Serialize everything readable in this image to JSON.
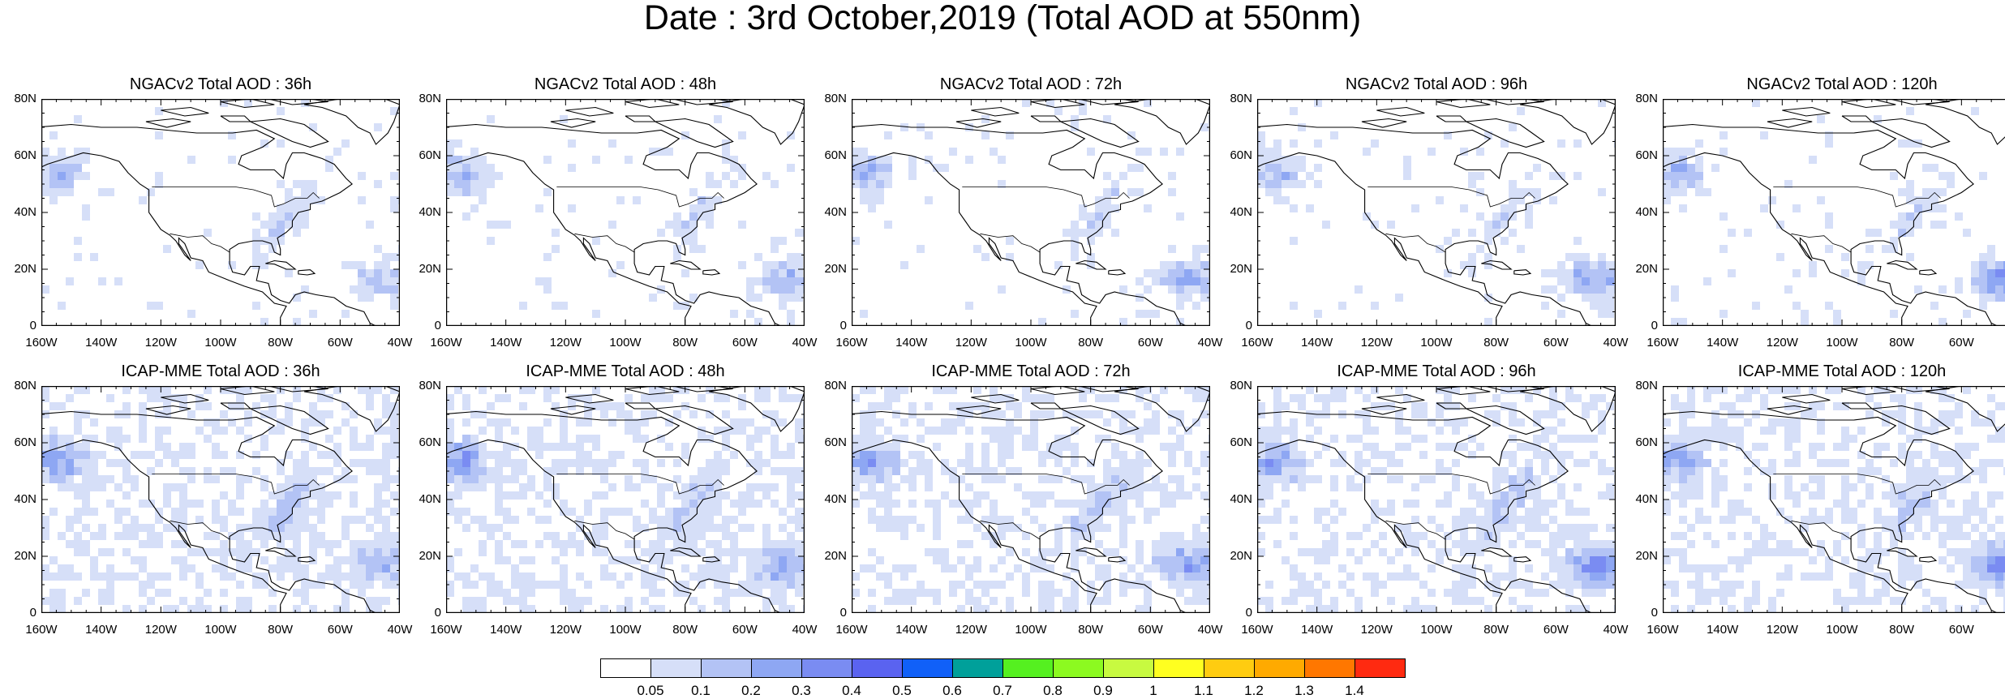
{
  "title": "Date : 3rd October,2019 (Total AOD at 550nm)",
  "panels": [
    {
      "title": "NGACv2 Total AOD : 36h",
      "variant": 0
    },
    {
      "title": "NGACv2 Total AOD : 48h",
      "variant": 1
    },
    {
      "title": "NGACv2 Total AOD : 72h",
      "variant": 2
    },
    {
      "title": "NGACv2 Total AOD : 96h",
      "variant": 3
    },
    {
      "title": "NGACv2 Total AOD : 120h",
      "variant": 4
    },
    {
      "title": "ICAP-MME Total AOD : 36h",
      "variant": 5
    },
    {
      "title": "ICAP-MME Total AOD : 48h",
      "variant": 6
    },
    {
      "title": "ICAP-MME Total AOD : 72h",
      "variant": 7
    },
    {
      "title": "ICAP-MME Total AOD : 96h",
      "variant": 8
    },
    {
      "title": "ICAP-MME Total AOD : 120h",
      "variant": 9
    }
  ],
  "lat_labels": [
    "80N",
    "60N",
    "40N",
    "20N",
    "0"
  ],
  "lon_labels": [
    "160W",
    "140W",
    "120W",
    "100W",
    "80W",
    "60W",
    "40W"
  ],
  "colorbar": {
    "colors": [
      "#ffffff",
      "#d6dff8",
      "#b3c3f5",
      "#8ea7f3",
      "#7a8cf2",
      "#5a63f0",
      "#1060f8",
      "#00a09a",
      "#55f020",
      "#8cfa20",
      "#c8fa40",
      "#ffff20",
      "#ffcc10",
      "#ffaa00",
      "#ff7700",
      "#ff2a10"
    ],
    "labels": [
      "0.05",
      "0.1",
      "0.2",
      "0.3",
      "0.4",
      "0.5",
      "0.6",
      "0.7",
      "0.8",
      "0.9",
      "1",
      "1.1",
      "1.2",
      "1.3",
      "1.4"
    ]
  }
}
